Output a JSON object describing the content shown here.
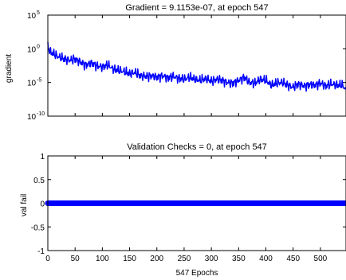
{
  "colors": {
    "series": "#0000ff",
    "axes": "#000000",
    "background": "#ffffff"
  },
  "chart_data": [
    {
      "type": "line",
      "title": "Gradient = 9.1153e-07, at epoch 547",
      "xlabel": "",
      "ylabel": "gradient",
      "yscale": "log",
      "xlim": [
        0,
        547
      ],
      "ylim": [
        1e-10,
        100000.0
      ],
      "xticks": [
        0,
        50,
        100,
        150,
        200,
        250,
        300,
        350,
        400,
        450,
        500
      ],
      "xtick_labels_shown": false,
      "yticks": [
        {
          "mantissa": "10",
          "exponent": "-10",
          "value": 1e-10
        },
        {
          "mantissa": "10",
          "exponent": "-5",
          "value": 1e-05
        },
        {
          "mantissa": "10",
          "exponent": "0",
          "value": 1
        },
        {
          "mantissa": "10",
          "exponent": "5",
          "value": 100000.0
        }
      ],
      "grid": false,
      "series": [
        {
          "name": "",
          "x": [
            0,
            1,
            5,
            10,
            20,
            30,
            40,
            50,
            60,
            70,
            80,
            90,
            100,
            110,
            120,
            130,
            140,
            150,
            160,
            170,
            180,
            190,
            200,
            210,
            220,
            230,
            240,
            250,
            260,
            270,
            280,
            290,
            300,
            310,
            320,
            330,
            340,
            350,
            360,
            370,
            380,
            390,
            400,
            410,
            420,
            430,
            440,
            450,
            460,
            470,
            480,
            490,
            500,
            510,
            520,
            530,
            540,
            547
          ],
          "y": [
            10,
            0.8,
            0.3,
            0.2,
            0.06,
            0.03,
            0.02,
            0.03,
            0.01,
            0.004,
            0.008,
            0.003,
            0.002,
            0.004,
            0.001,
            0.0006,
            0.0004,
            0.0002,
            0.0003,
            0.0001,
            8e-05,
            0.0001,
            6e-05,
            0.0001,
            5e-05,
            8e-05,
            4e-05,
            3e-05,
            6e-05,
            3e-05,
            2e-05,
            4e-05,
            1.5e-05,
            3e-05,
            2e-05,
            1e-05,
            8e-06,
            2e-05,
            6e-05,
            1e-05,
            8e-06,
            3e-05,
            2e-05,
            4e-06,
            8e-06,
            1e-05,
            4e-06,
            2e-06,
            6e-06,
            3e-06,
            5e-06,
            4e-06,
            8e-06,
            3e-06,
            6e-06,
            4e-06,
            4e-06,
            9e-07
          ]
        }
      ]
    },
    {
      "type": "line",
      "title": "Validation Checks = 0, at epoch 547",
      "xlabel": "547 Epochs",
      "ylabel": "val fail",
      "xlim": [
        0,
        547
      ],
      "ylim": [
        -1,
        1
      ],
      "xticks": [
        0,
        50,
        100,
        150,
        200,
        250,
        300,
        350,
        400,
        450,
        500
      ],
      "yticks": [
        -1,
        -0.5,
        0,
        0.5,
        1
      ],
      "grid": false,
      "marker": "circle",
      "series": [
        {
          "name": "",
          "x_start": 0,
          "x_end": 547,
          "y": 0
        }
      ]
    }
  ]
}
